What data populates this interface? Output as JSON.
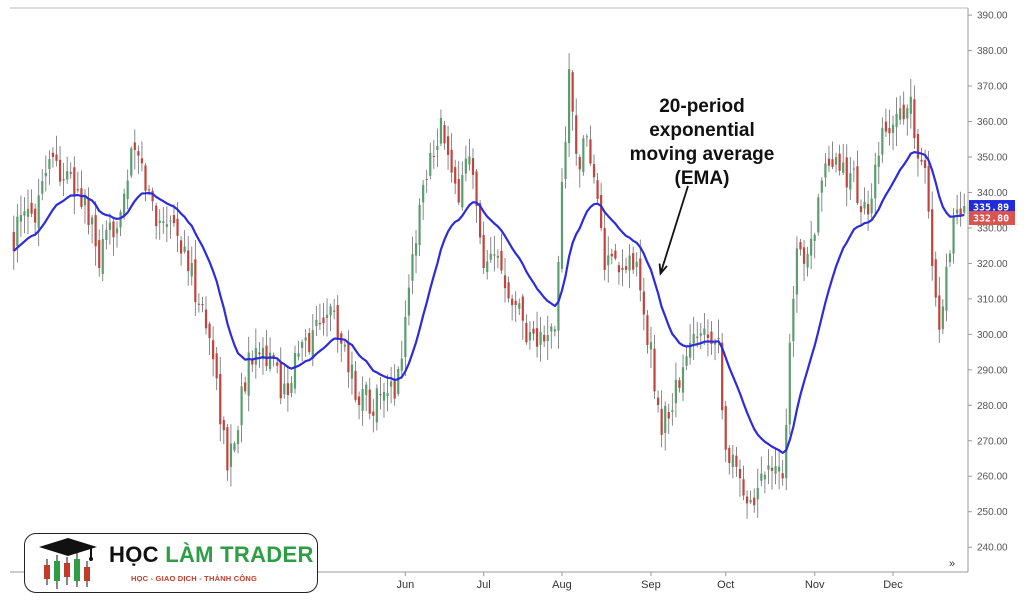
{
  "chart_data": {
    "type": "candlestick",
    "title": "",
    "xlabel": "",
    "ylabel": "",
    "y_axis_position": "right",
    "ylim": [
      233,
      392
    ],
    "y_ticks": [
      240,
      250,
      260,
      270,
      280,
      290,
      300,
      310,
      320,
      330,
      340,
      350,
      360,
      370,
      380,
      390
    ],
    "y_tick_labels": [
      "240.00",
      "250.00",
      "260.00",
      "270.00",
      "280.00",
      "290.00",
      "300.00",
      "310.00",
      "320.00",
      "330.00",
      "340.00",
      "350.00",
      "360.00",
      "370.00",
      "380.00",
      "390.00"
    ],
    "x_tick_labels": [
      {
        "label": "Jun",
        "index": 110
      },
      {
        "label": "Jul",
        "index": 132
      },
      {
        "label": "Aug",
        "index": 154
      },
      {
        "label": "Sep",
        "index": 179
      },
      {
        "label": "Oct",
        "index": 200
      },
      {
        "label": "Nov",
        "index": 225
      },
      {
        "label": "Dec",
        "index": 247
      }
    ],
    "candle_count": 268,
    "ohlc_anchors": [
      [
        0,
        328
      ],
      [
        6,
        336
      ],
      [
        10,
        352
      ],
      [
        14,
        345
      ],
      [
        20,
        337
      ],
      [
        24,
        320
      ],
      [
        28,
        330
      ],
      [
        34,
        352
      ],
      [
        40,
        333
      ],
      [
        44,
        334
      ],
      [
        48,
        322
      ],
      [
        52,
        310
      ],
      [
        56,
        295
      ],
      [
        60,
        262
      ],
      [
        64,
        282
      ],
      [
        68,
        300
      ],
      [
        72,
        292
      ],
      [
        76,
        284
      ],
      [
        80,
        294
      ],
      [
        84,
        300
      ],
      [
        88,
        308
      ],
      [
        92,
        300
      ],
      [
        96,
        284
      ],
      [
        100,
        282
      ],
      [
        104,
        280
      ],
      [
        108,
        288
      ],
      [
        112,
        322
      ],
      [
        116,
        348
      ],
      [
        120,
        360
      ],
      [
        124,
        338
      ],
      [
        128,
        352
      ],
      [
        132,
        316
      ],
      [
        136,
        322
      ],
      [
        140,
        312
      ],
      [
        144,
        302
      ],
      [
        148,
        298
      ],
      [
        152,
        300
      ],
      [
        154,
        342
      ],
      [
        156,
        372
      ],
      [
        158,
        350
      ],
      [
        162,
        352
      ],
      [
        166,
        320
      ],
      [
        170,
        316
      ],
      [
        174,
        322
      ],
      [
        178,
        300
      ],
      [
        182,
        274
      ],
      [
        186,
        284
      ],
      [
        190,
        296
      ],
      [
        194,
        304
      ],
      [
        198,
        298
      ],
      [
        200,
        268
      ],
      [
        204,
        258
      ],
      [
        208,
        254
      ],
      [
        212,
        266
      ],
      [
        216,
        260
      ],
      [
        218,
        296
      ],
      [
        220,
        320
      ],
      [
        224,
        328
      ],
      [
        228,
        344
      ],
      [
        232,
        348
      ],
      [
        236,
        343
      ],
      [
        240,
        332
      ],
      [
        244,
        355
      ],
      [
        248,
        362
      ],
      [
        252,
        364
      ],
      [
        256,
        344
      ],
      [
        258,
        322
      ],
      [
        260,
        300
      ],
      [
        262,
        320
      ],
      [
        264,
        332
      ],
      [
        267,
        334
      ]
    ],
    "series": [
      {
        "name": "20-period exponential moving average (EMA)",
        "color": "#2c2cdc",
        "period": 20
      }
    ],
    "annotation": {
      "lines": [
        "20-period",
        "exponential",
        "moving average",
        "(EMA)"
      ],
      "points_to_index": 180
    },
    "price_tags": [
      {
        "value": 335.89,
        "label": "335.89",
        "color": "#1f2bdc"
      },
      {
        "value": 332.8,
        "label": "332.80",
        "color": "#d9534f"
      }
    ],
    "colors": {
      "up": "#5a9e6f",
      "down": "#c2443c",
      "wick": "#6b6b6b",
      "ema": "#2c2cdc"
    },
    "grid": false,
    "legend": "none"
  },
  "logo": {
    "name_part1": "HỌC ",
    "name_part2": "LÀM TRADER",
    "tagline": "HỌC - GIAO DỊCH - THÀNH CÔNG",
    "icon": "candlestick-graduation-cap-icon"
  },
  "nav": {
    "icon": "double-chevron-right-icon",
    "glyph": "»"
  }
}
